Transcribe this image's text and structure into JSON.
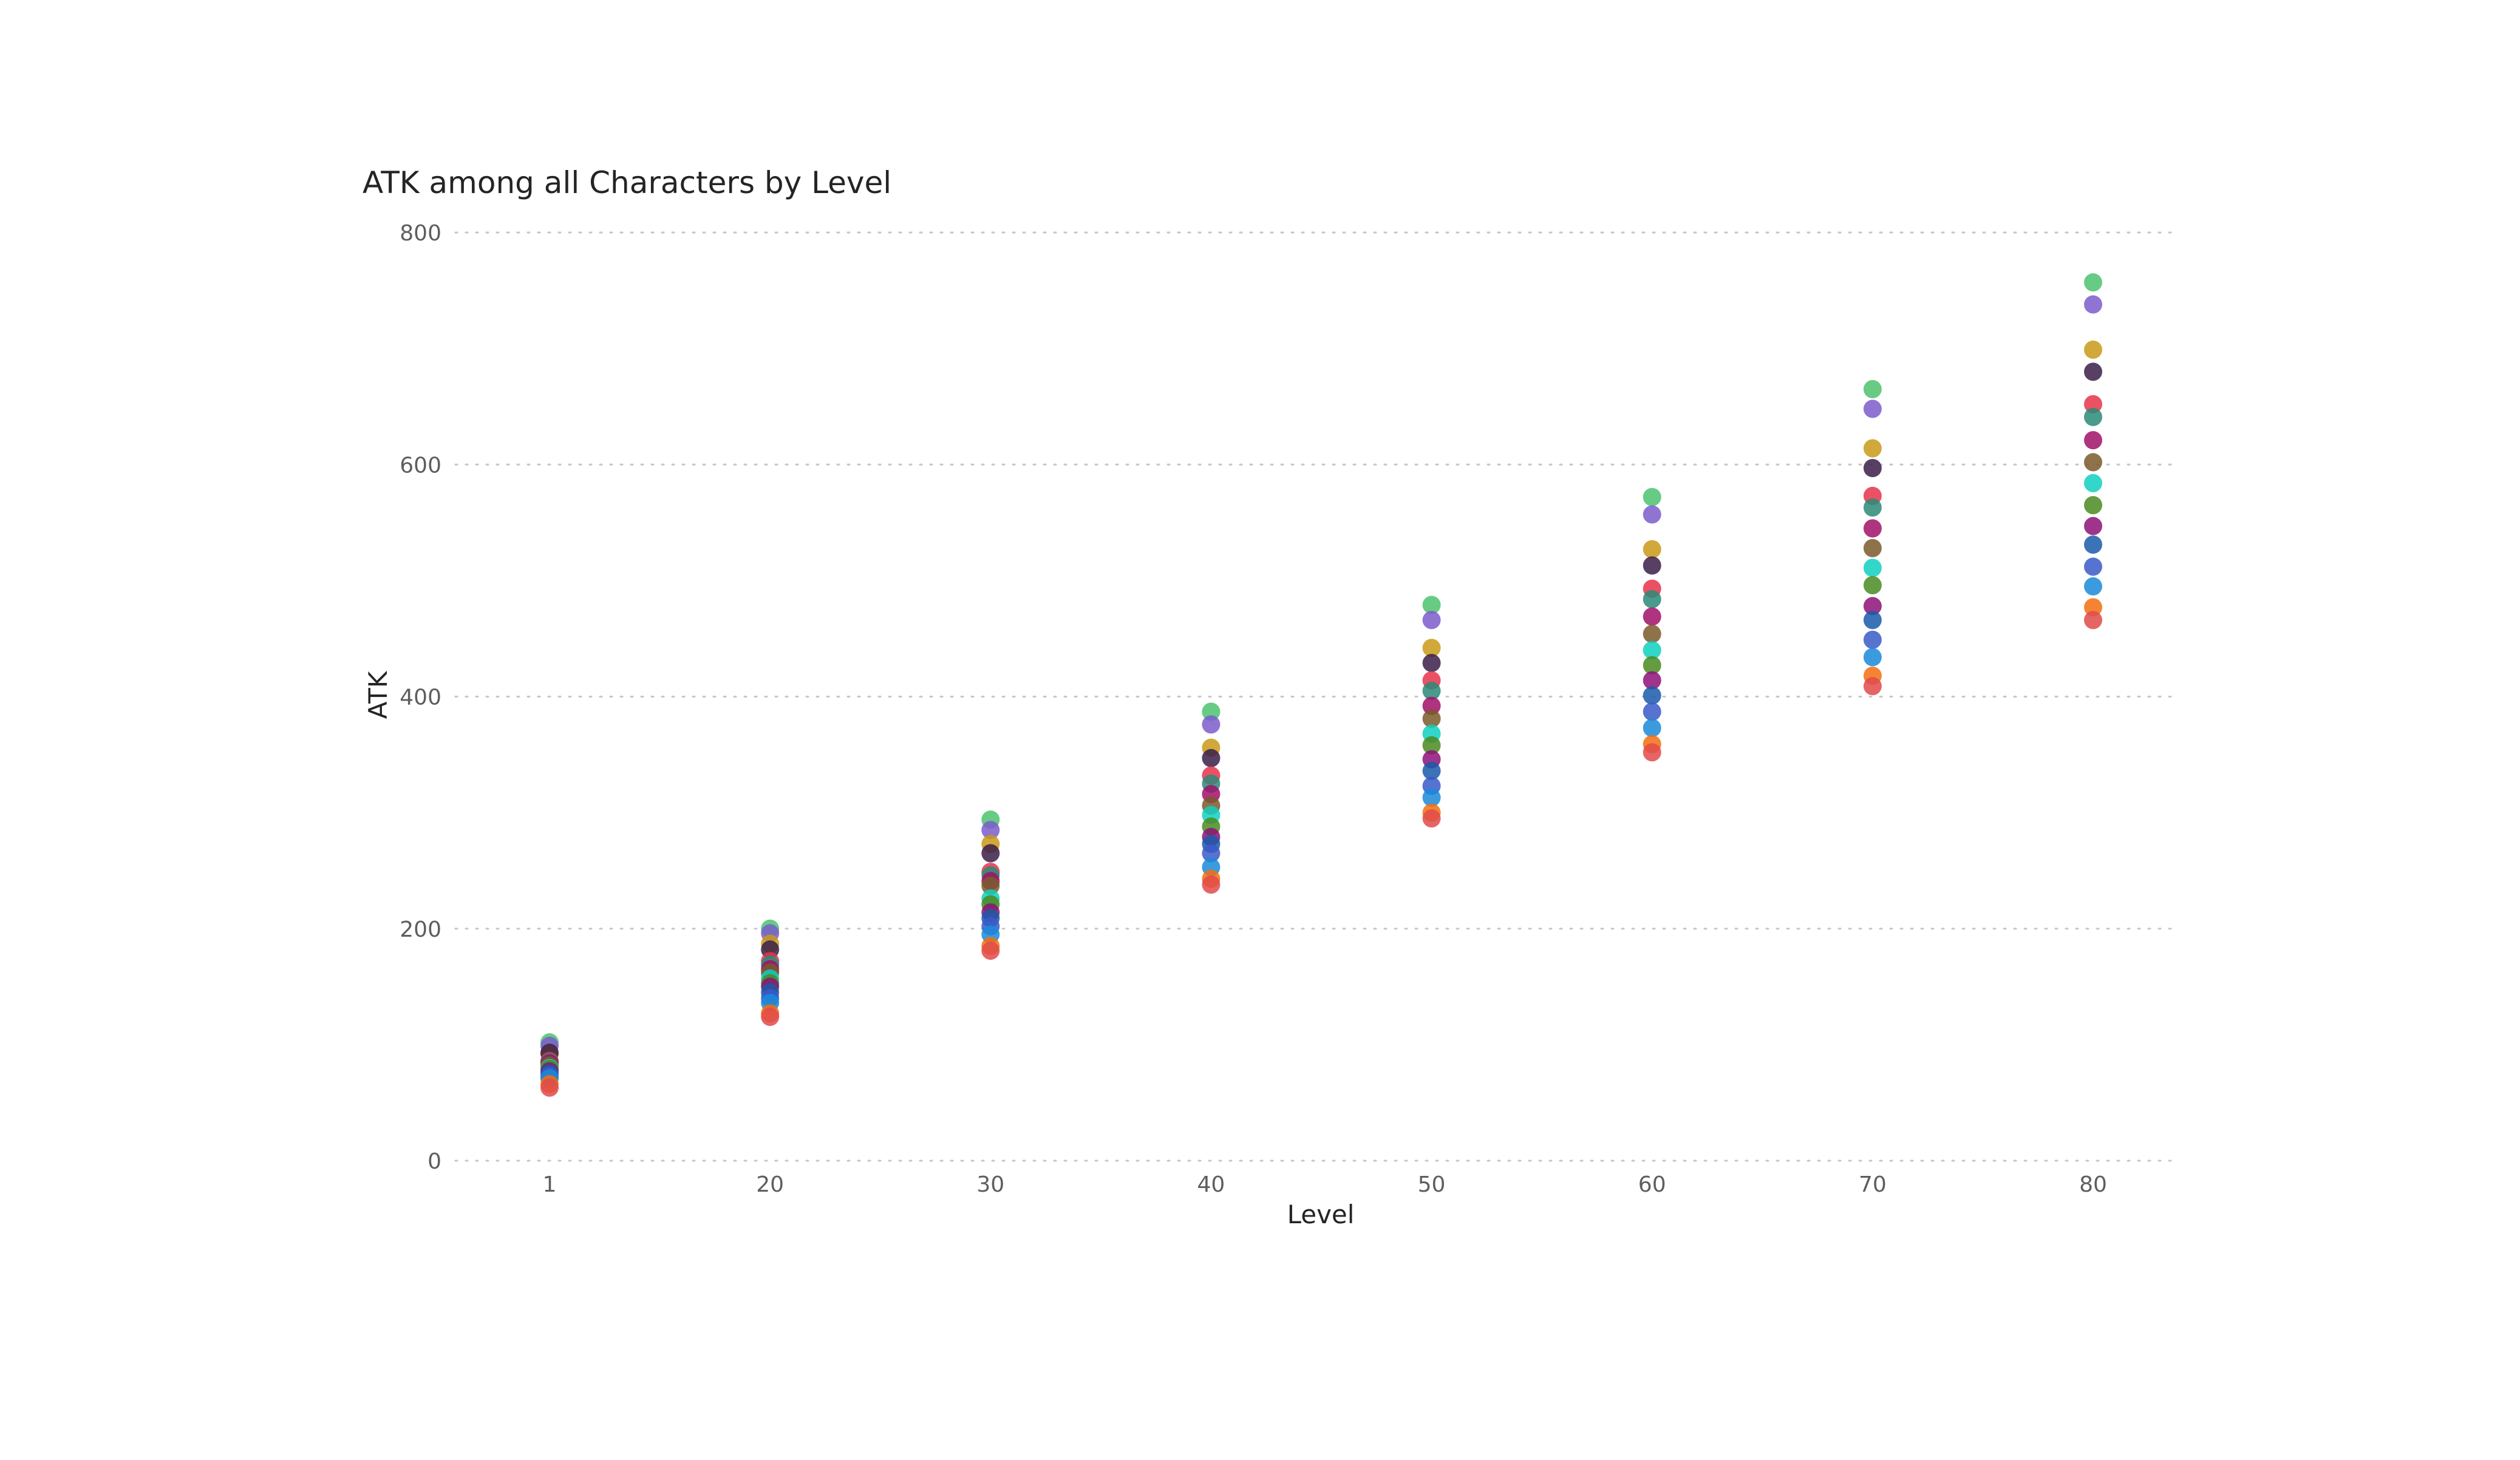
{
  "chart_data": {
    "type": "scatter",
    "title": "ATK among all Characters by Level",
    "xlabel": "Level",
    "ylabel": "ATK",
    "x_categories": [
      "1",
      "20",
      "30",
      "40",
      "50",
      "60",
      "70",
      "80"
    ],
    "ylim": [
      0,
      800
    ],
    "yticks": [
      0,
      200,
      400,
      600,
      800
    ],
    "grid": true,
    "legend": "none",
    "series": [
      {
        "color": "#4cc26e",
        "values": [
          102,
          200,
          294,
          387,
          479,
          572,
          665,
          757
        ]
      },
      {
        "color": "#7b5ccc",
        "values": [
          99,
          196,
          285,
          376,
          466,
          557,
          648,
          738
        ]
      },
      {
        "color": "#c99a18",
        "values": [
          92,
          187,
          273,
          356,
          442,
          527,
          614,
          699
        ]
      },
      {
        "color": "#3a1f49",
        "values": [
          93,
          182,
          265,
          347,
          429,
          513,
          597,
          680
        ]
      },
      {
        "color": "#e8334a",
        "values": [
          86,
          172,
          249,
          332,
          414,
          493,
          573,
          652
        ]
      },
      {
        "color": "#2c8a78",
        "values": [
          85,
          169,
          246,
          325,
          405,
          484,
          563,
          641
        ]
      },
      {
        "color": "#a0106a",
        "values": [
          84,
          165,
          241,
          316,
          392,
          469,
          545,
          621
        ]
      },
      {
        "color": "#7a5a2a",
        "values": [
          82,
          162,
          237,
          306,
          381,
          454,
          528,
          602
        ]
      },
      {
        "color": "#0fd0c0",
        "values": [
          80,
          157,
          226,
          298,
          368,
          440,
          511,
          584
        ]
      },
      {
        "color": "#4a8a20",
        "values": [
          79,
          153,
          221,
          288,
          358,
          427,
          496,
          565
        ]
      },
      {
        "color": "#8e1078",
        "values": [
          77,
          150,
          214,
          279,
          346,
          414,
          478,
          547
        ]
      },
      {
        "color": "#1a5aaa",
        "values": [
          75,
          145,
          209,
          273,
          336,
          401,
          466,
          531
        ]
      },
      {
        "color": "#3a5ac8",
        "values": [
          73,
          140,
          202,
          265,
          323,
          387,
          449,
          512
        ]
      },
      {
        "color": "#1a8ad8",
        "values": [
          71,
          136,
          195,
          253,
          313,
          373,
          434,
          495
        ]
      },
      {
        "color": "#f26e10",
        "values": [
          66,
          127,
          185,
          243,
          300,
          359,
          418,
          477
        ]
      },
      {
        "color": "#e04a4a",
        "values": [
          63,
          124,
          181,
          238,
          295,
          352,
          409,
          466
        ]
      }
    ]
  }
}
